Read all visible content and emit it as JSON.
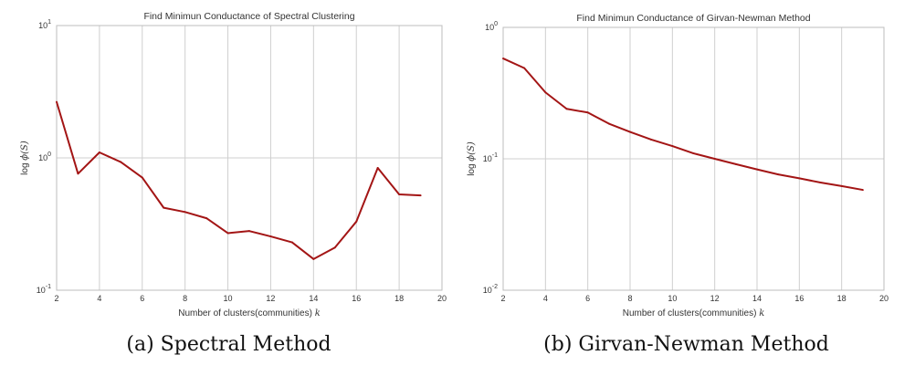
{
  "chart_data": [
    {
      "type": "line",
      "title": "Find Minimun Conductance of Spectral Clustering",
      "xlabel": "Number of clusters(communities)",
      "xlabel_var": "k",
      "ylabel": "log",
      "ylabel_var": "ϕ(S)",
      "yscale": "log",
      "xlim": [
        2,
        20
      ],
      "ylim": [
        0.1,
        10
      ],
      "xticks": [
        2,
        4,
        6,
        8,
        10,
        12,
        14,
        16,
        18,
        20
      ],
      "yticks": [
        {
          "base": "10",
          "exp": "-1",
          "value": 0.1
        },
        {
          "base": "10",
          "exp": "0",
          "value": 1
        },
        {
          "base": "10",
          "exp": "1",
          "value": 10
        }
      ],
      "grid": true,
      "line_color": "#a31515",
      "x": [
        2,
        3,
        4,
        5,
        6,
        7,
        8,
        9,
        10,
        11,
        12,
        13,
        14,
        15,
        16,
        17,
        18,
        19
      ],
      "values": [
        2.65,
        0.76,
        1.1,
        0.93,
        0.71,
        0.42,
        0.39,
        0.35,
        0.27,
        0.28,
        0.255,
        0.23,
        0.172,
        0.21,
        0.33,
        0.84,
        0.53,
        0.52
      ],
      "caption": "(a) Spectral Method"
    },
    {
      "type": "line",
      "title": "Find Minimun Conductance of Girvan-Newman Method",
      "xlabel": "Number of clusters(communities)",
      "xlabel_var": "k",
      "ylabel": "log",
      "ylabel_var": "ϕ(S)",
      "yscale": "log",
      "xlim": [
        2,
        20
      ],
      "ylim": [
        0.01,
        1
      ],
      "xticks": [
        2,
        4,
        6,
        8,
        10,
        12,
        14,
        16,
        18,
        20
      ],
      "yticks": [
        {
          "base": "10",
          "exp": "-2",
          "value": 0.01
        },
        {
          "base": "10",
          "exp": "-1",
          "value": 0.1
        },
        {
          "base": "10",
          "exp": "0",
          "value": 1
        }
      ],
      "grid": true,
      "line_color": "#a31515",
      "x": [
        2,
        3,
        4,
        5,
        6,
        7,
        8,
        9,
        10,
        11,
        12,
        13,
        14,
        15,
        16,
        17,
        18,
        19
      ],
      "values": [
        0.58,
        0.49,
        0.32,
        0.24,
        0.225,
        0.185,
        0.16,
        0.14,
        0.125,
        0.11,
        0.1,
        0.091,
        0.083,
        0.076,
        0.071,
        0.066,
        0.062,
        0.058
      ],
      "caption": "(b) Girvan-Newman Method"
    }
  ]
}
